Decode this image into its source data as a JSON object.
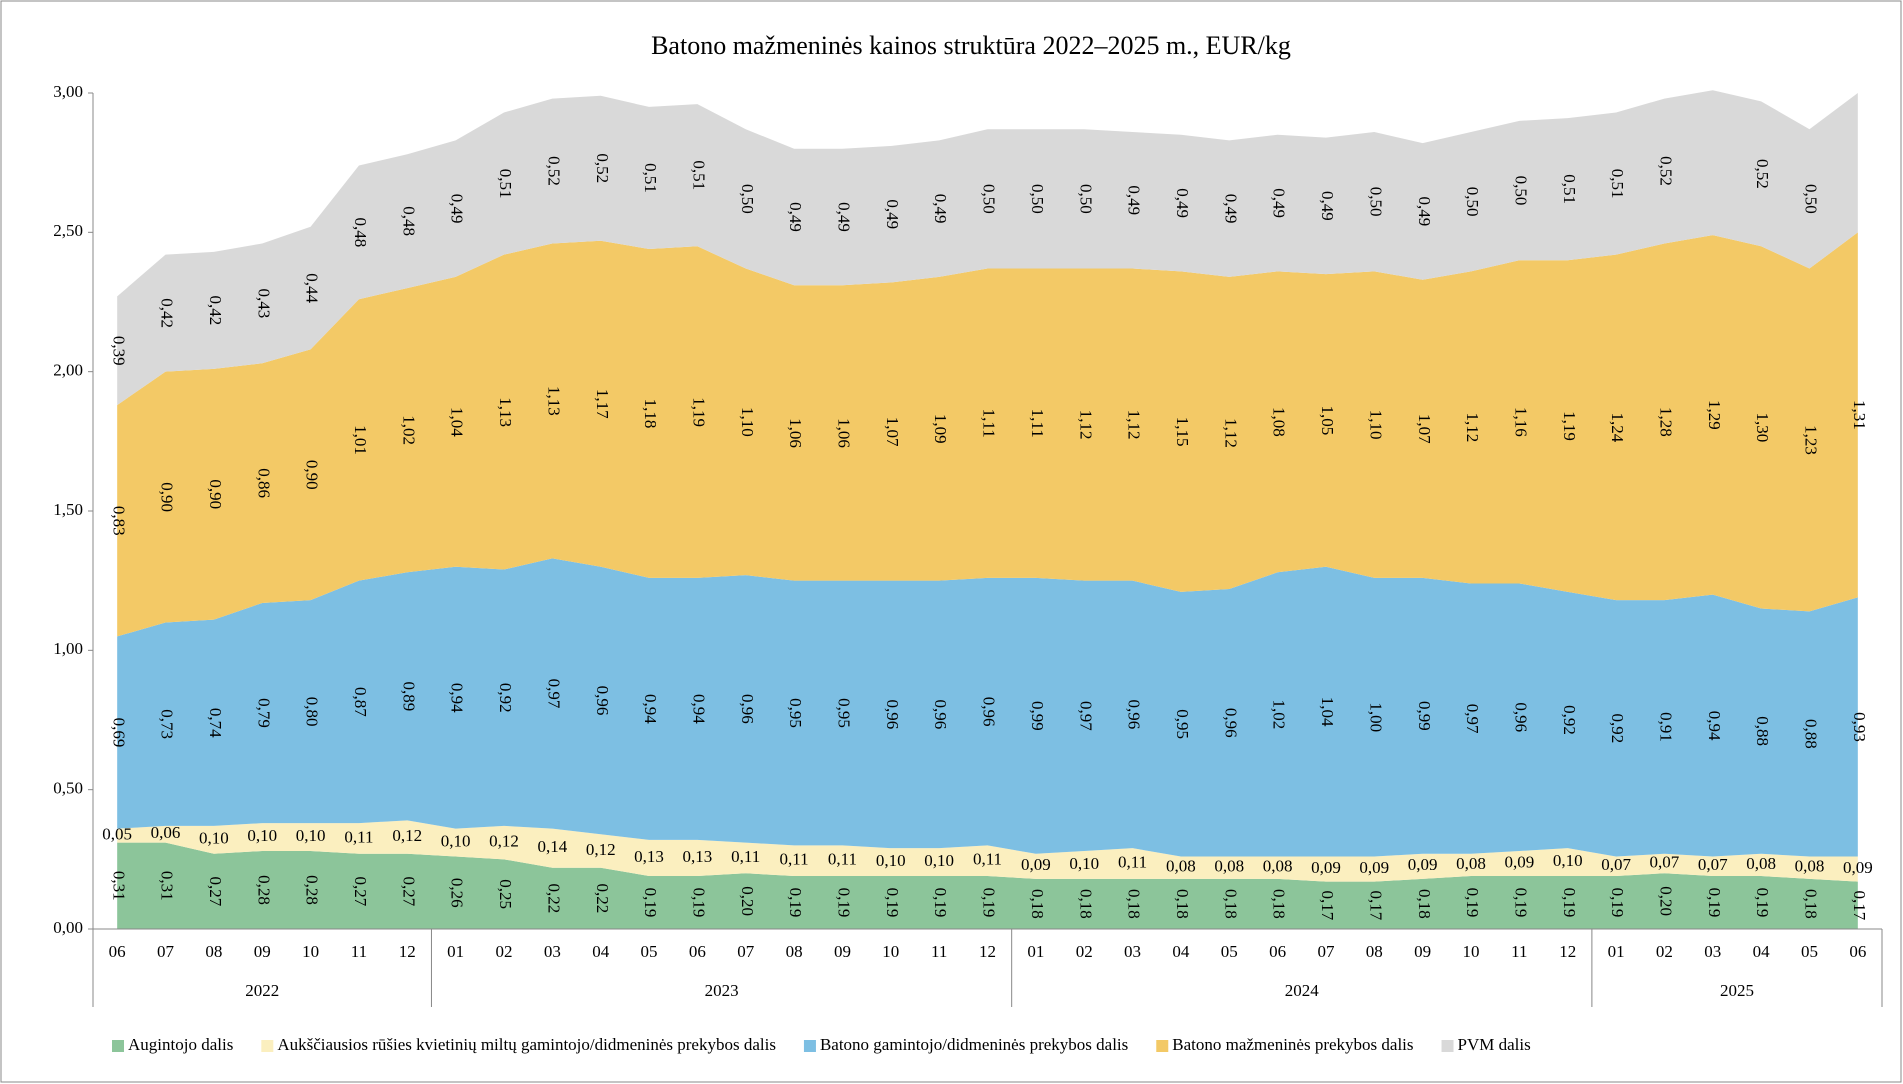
{
  "chart_data": {
    "type": "stacked_area",
    "title": "Batono mažmeninės kainos struktūra 2022–2025 m., EUR/kg",
    "categories": [
      "06",
      "07",
      "08",
      "09",
      "10",
      "11",
      "12",
      "01",
      "02",
      "03",
      "04",
      "05",
      "06",
      "07",
      "08",
      "09",
      "10",
      "11",
      "12",
      "01",
      "02",
      "03",
      "04",
      "05",
      "06",
      "07",
      "08",
      "09",
      "10",
      "11",
      "12",
      "01",
      "02",
      "03",
      "04",
      "05",
      "06"
    ],
    "category_groups": [
      {
        "label": "2022",
        "size": 7
      },
      {
        "label": "2023",
        "size": 12
      },
      {
        "label": "2024",
        "size": 12
      },
      {
        "label": "2025",
        "size": 6
      }
    ],
    "ylim": [
      0,
      3
    ],
    "yticks": [
      {
        "value": 0,
        "label": "0,00"
      },
      {
        "value": 0.5,
        "label": "0,50"
      },
      {
        "value": 1,
        "label": "1,00"
      },
      {
        "value": 1.5,
        "label": "1,50"
      },
      {
        "value": 2,
        "label": "2,00"
      },
      {
        "value": 2.5,
        "label": "2,50"
      },
      {
        "value": 3,
        "label": "3,00"
      }
    ],
    "legend": "bottom",
    "series": [
      {
        "name": "Augintojo dalis",
        "color": "#8cc59a",
        "values": [
          0.31,
          0.31,
          0.27,
          0.28,
          0.28,
          0.27,
          0.27,
          0.26,
          0.25,
          0.22,
          0.22,
          0.19,
          0.19,
          0.2,
          0.19,
          0.19,
          0.19,
          0.19,
          0.19,
          0.18,
          0.18,
          0.18,
          0.18,
          0.18,
          0.18,
          0.17,
          0.17,
          0.18,
          0.19,
          0.19,
          0.19,
          0.19,
          0.2,
          0.19,
          0.19,
          0.18,
          0.17
        ],
        "value_labels": [
          "0,31",
          "0,31",
          "0,27",
          "0,28",
          "0,28",
          "0,27",
          "0,27",
          "0,26",
          "0,25",
          "0,22",
          "0,22",
          "0,19",
          "0,19",
          "0,20",
          "0,19",
          "0,19",
          "0,19",
          "0,19",
          "0,19",
          "0,18",
          "0,18",
          "0,18",
          "0,18",
          "0,18",
          "0,18",
          "0,17",
          "0,17",
          "0,18",
          "0,19",
          "0,19",
          "0,19",
          "0,19",
          "0,20",
          "0,19",
          "0,19",
          "0,18",
          "0,17"
        ]
      },
      {
        "name": "Aukščiausios rūšies kvietinių miltų gamintojo/didmeninės prekybos dalis",
        "color": "#fbefbf",
        "values": [
          0.05,
          0.06,
          0.1,
          0.1,
          0.1,
          0.11,
          0.12,
          0.1,
          0.12,
          0.14,
          0.12,
          0.13,
          0.13,
          0.11,
          0.11,
          0.11,
          0.1,
          0.1,
          0.11,
          0.09,
          0.1,
          0.11,
          0.08,
          0.08,
          0.08,
          0.09,
          0.09,
          0.09,
          0.08,
          0.09,
          0.1,
          0.07,
          0.07,
          0.07,
          0.08,
          0.08,
          0.09
        ],
        "value_labels": [
          "0,05",
          "0,06",
          "0,10",
          "0,10",
          "0,10",
          "0,11",
          "0,12",
          "0,10",
          "0,12",
          "0,14",
          "0,12",
          "0,13",
          "0,13",
          "0,11",
          "0,11",
          "0,11",
          "0,10",
          "0,10",
          "0,11",
          "0,09",
          "0,10",
          "0,11",
          "0,08",
          "0,08",
          "0,08",
          "0,09",
          "0,09",
          "0,09",
          "0,08",
          "0,09",
          "0,10",
          "0,07",
          "0,07",
          "0,07",
          "0,08",
          "0,08",
          "0,09"
        ]
      },
      {
        "name": "Batono gamintojo/didmeninės prekybos dalis",
        "color": "#7dbfe3",
        "values": [
          0.69,
          0.73,
          0.74,
          0.79,
          0.8,
          0.87,
          0.89,
          0.94,
          0.92,
          0.97,
          0.96,
          0.94,
          0.94,
          0.96,
          0.95,
          0.95,
          0.96,
          0.96,
          0.96,
          0.99,
          0.97,
          0.96,
          0.95,
          0.96,
          1.02,
          1.04,
          1.0,
          0.99,
          0.97,
          0.96,
          0.92,
          0.92,
          0.91,
          0.94,
          0.88,
          0.88,
          0.93
        ],
        "value_labels": [
          "0,69",
          "0,73",
          "0,74",
          "0,79",
          "0,80",
          "0,87",
          "0,89",
          "0,94",
          "0,92",
          "0,97",
          "0,96",
          "0,94",
          "0,94",
          "0,96",
          "0,95",
          "0,95",
          "0,96",
          "0,96",
          "0,96",
          "0,99",
          "0,97",
          "0,96",
          "0,95",
          "0,96",
          "1,02",
          "1,04",
          "1,00",
          "0,99",
          "0,97",
          "0,96",
          "0,92",
          "0,92",
          "0,91",
          "0,94",
          "0,88",
          "0,88",
          "0,93"
        ]
      },
      {
        "name": "Batono mažmeninės prekybos dalis",
        "color": "#f3c966",
        "values": [
          0.83,
          0.9,
          0.9,
          0.86,
          0.9,
          1.01,
          1.02,
          1.04,
          1.13,
          1.13,
          1.17,
          1.18,
          1.19,
          1.1,
          1.06,
          1.06,
          1.07,
          1.09,
          1.11,
          1.11,
          1.12,
          1.12,
          1.15,
          1.12,
          1.08,
          1.05,
          1.1,
          1.07,
          1.12,
          1.16,
          1.19,
          1.24,
          1.28,
          1.29,
          1.3,
          1.23,
          1.31
        ],
        "value_labels": [
          "0,83",
          "0,90",
          "0,90",
          "0,86",
          "0,90",
          "1,01",
          "1,02",
          "1,04",
          "1,13",
          "1,13",
          "1,17",
          "1,18",
          "1,19",
          "1,10",
          "1,06",
          "1,06",
          "1,07",
          "1,09",
          "1,11",
          "1,11",
          "1,12",
          "1,12",
          "1,15",
          "1,12",
          "1,08",
          "1,05",
          "1,10",
          "1,07",
          "1,12",
          "1,16",
          "1,19",
          "1,24",
          "1,28",
          "1,29",
          "1,30",
          "1,23",
          "1,31"
        ]
      },
      {
        "name": "PVM dalis",
        "color": "#d9d9d9",
        "values": [
          0.39,
          0.42,
          0.42,
          0.43,
          0.44,
          0.48,
          0.48,
          0.49,
          0.51,
          0.52,
          0.52,
          0.51,
          0.51,
          0.5,
          0.49,
          0.49,
          0.49,
          0.49,
          0.5,
          0.5,
          0.5,
          0.49,
          0.49,
          0.49,
          0.49,
          0.49,
          0.5,
          0.49,
          0.5,
          0.5,
          0.51,
          0.51,
          0.52,
          0.52,
          0.52,
          0.5,
          0.5
        ],
        "value_labels": [
          "0,39",
          "0,42",
          "0,42",
          "0,43",
          "0,44",
          "0,48",
          "0,48",
          "0,49",
          "0,51",
          "0,52",
          "0,52",
          "0,51",
          "0,51",
          "0,50",
          "0,49",
          "0,49",
          "0,49",
          "0,49",
          "0,50",
          "0,50",
          "0,50",
          "0,49",
          "0,49",
          "0,49",
          "0,49",
          "0,49",
          "0,50",
          "0,49",
          "0,50",
          "0,50",
          "0,51",
          "0,51",
          "0,52",
          null,
          "0,52",
          "0,50",
          null
        ]
      }
    ]
  }
}
